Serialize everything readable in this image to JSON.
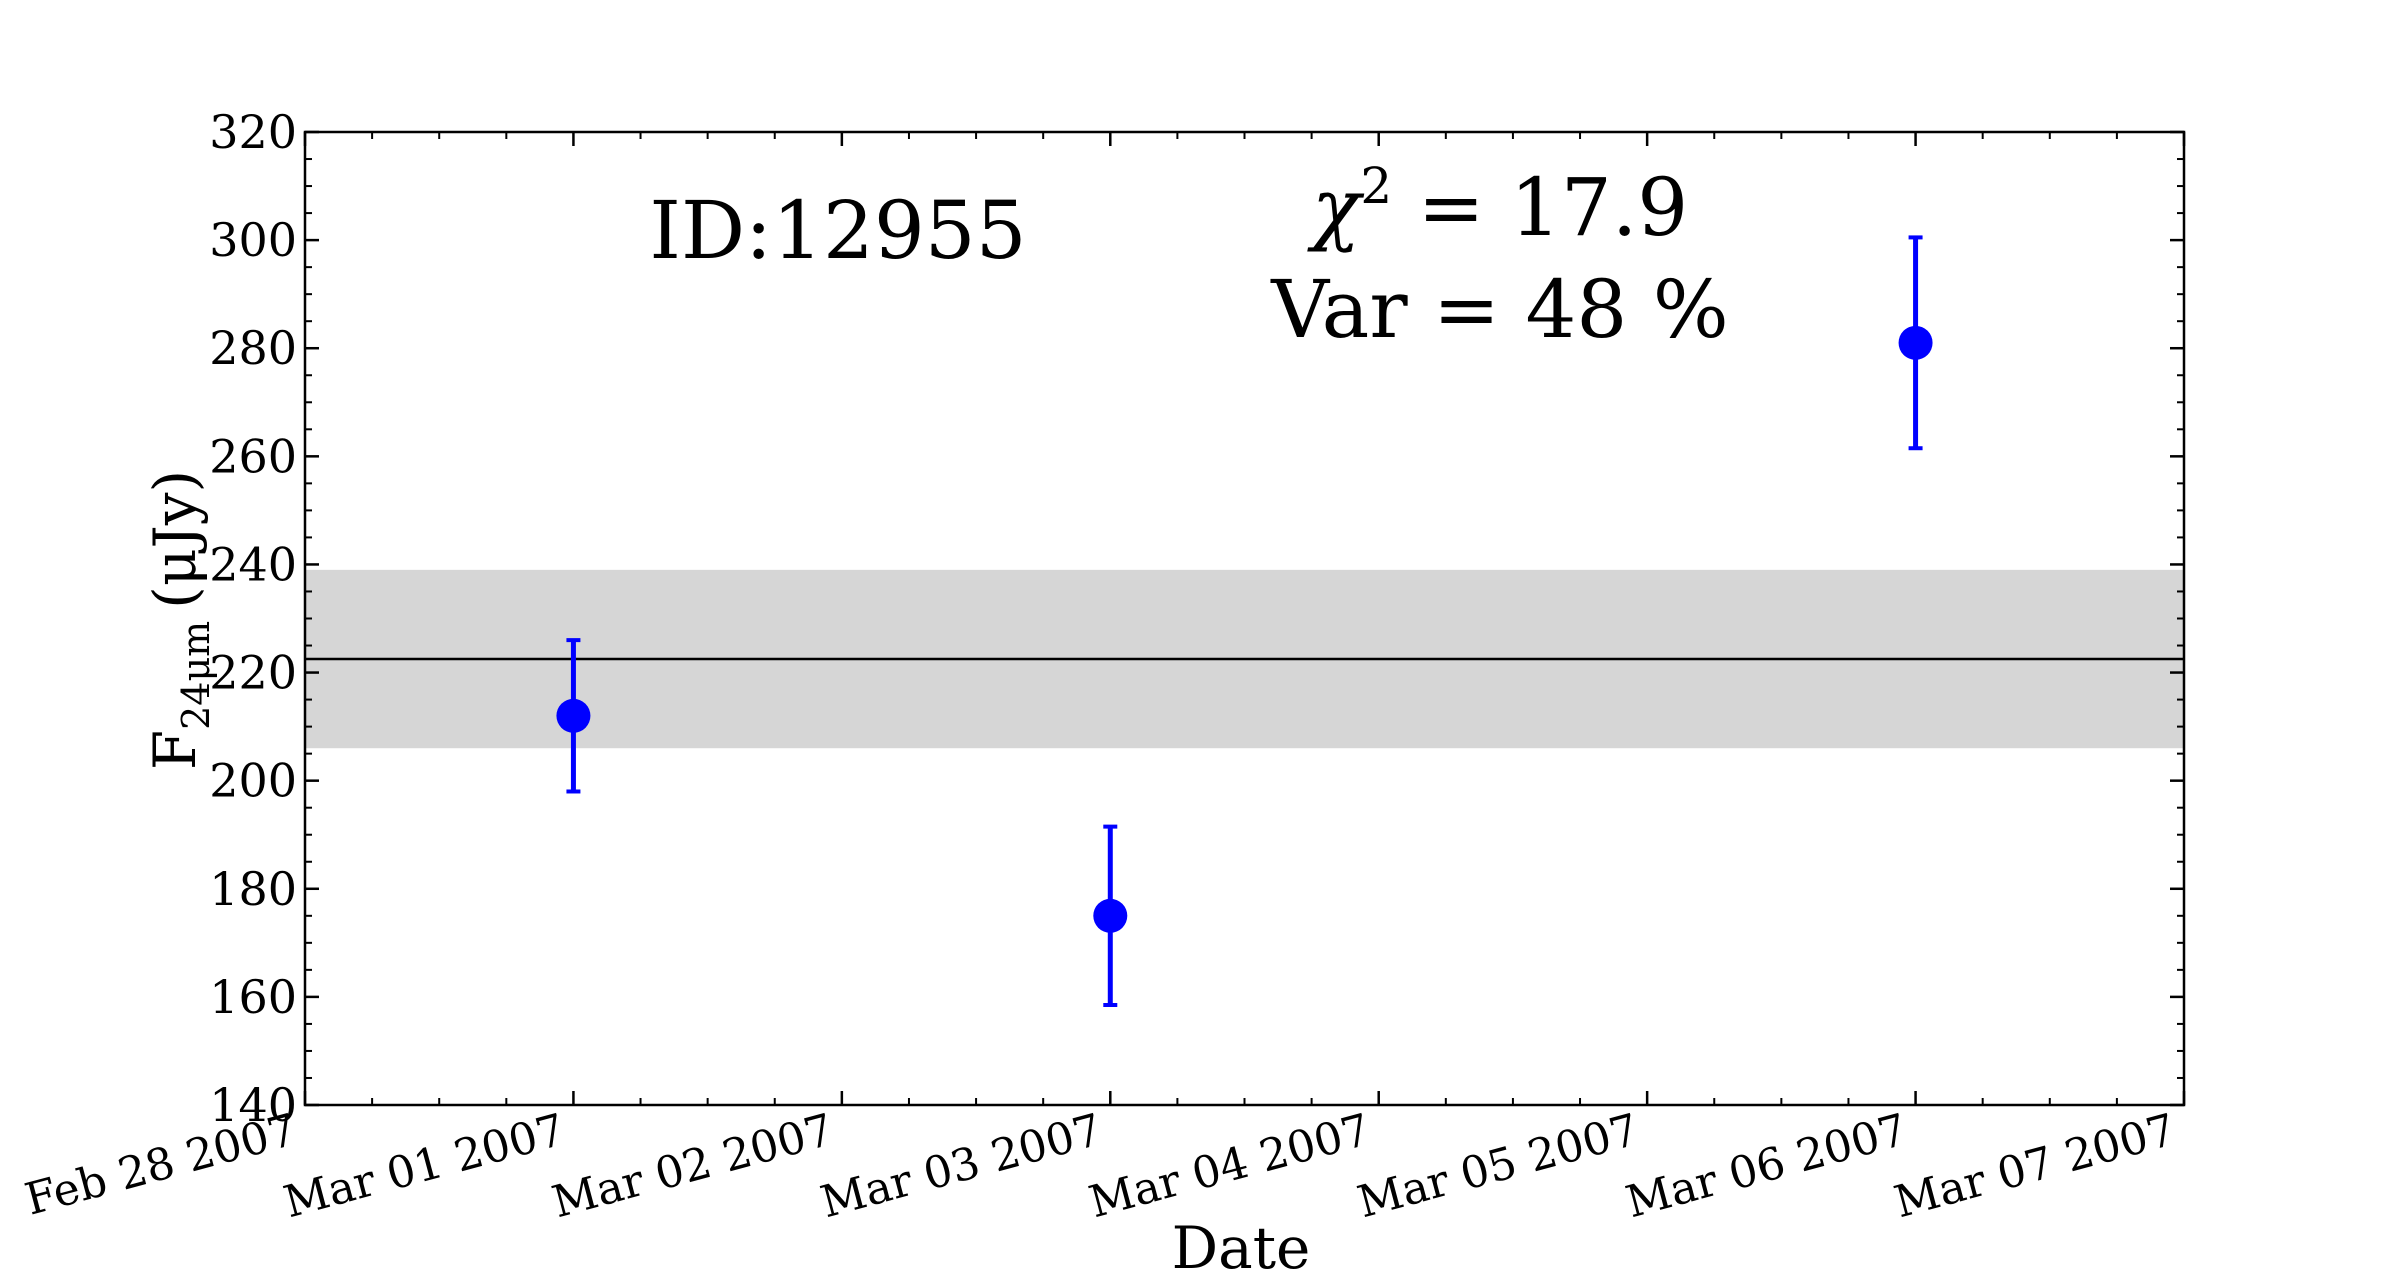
{
  "chart_data": {
    "type": "scatter",
    "xlabel": "Date",
    "ylabel_main": "F",
    "ylabel_sub": "24μm",
    "ylabel_unit": "(μJy)",
    "x_ticks": [
      "Feb 28 2007",
      "Mar 01 2007",
      "Mar 02 2007",
      "Mar 03 2007",
      "Mar 04 2007",
      "Mar 05 2007",
      "Mar 06 2007",
      "Mar 07 2007"
    ],
    "xlim": [
      "Feb 28 2007",
      "Mar 07 2007"
    ],
    "ylim": [
      140,
      320
    ],
    "y_ticks": [
      140,
      160,
      180,
      200,
      220,
      240,
      260,
      280,
      300,
      320
    ],
    "series": [
      {
        "x": [
          "Mar 01 2007",
          "Mar 03 2007",
          "Mar 06 2007"
        ],
        "y": [
          212,
          175,
          281
        ],
        "yerr": [
          14,
          16.5,
          19.5
        ],
        "color": "#0000ff"
      }
    ],
    "mean_line": 222.5,
    "band": [
      206,
      239
    ],
    "band_color": "#d6d6d6",
    "annotations": {
      "id_text": "ID:12955",
      "chi_symbol": "χ",
      "chi_sup": "2",
      "chi_value": " = 17.9",
      "var_text": "Var = 48 %"
    },
    "grid": false,
    "legend": "none"
  }
}
